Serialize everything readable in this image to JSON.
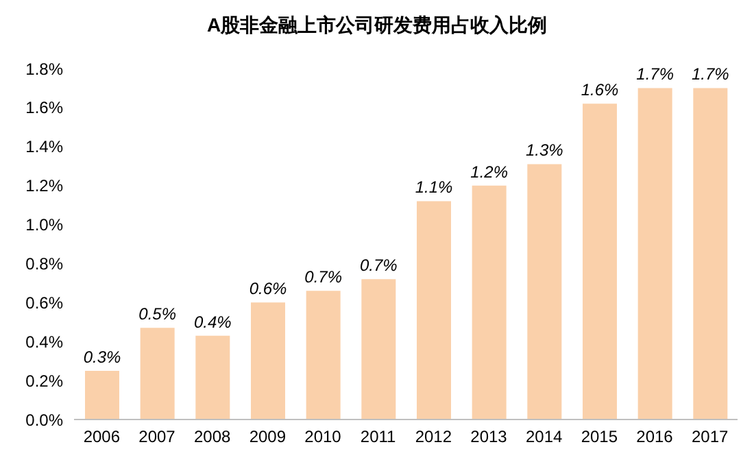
{
  "chart_data": {
    "type": "bar",
    "title": "A股非金融上市公司研发费用占收入比例",
    "categories": [
      "2006",
      "2007",
      "2008",
      "2009",
      "2010",
      "2011",
      "2012",
      "2013",
      "2014",
      "2015",
      "2016",
      "2017"
    ],
    "values": [
      0.25,
      0.47,
      0.43,
      0.6,
      0.66,
      0.72,
      1.12,
      1.2,
      1.31,
      1.62,
      1.7,
      1.7
    ],
    "value_labels": [
      "0.3%",
      "0.5%",
      "0.4%",
      "0.6%",
      "0.7%",
      "0.7%",
      "1.1%",
      "1.2%",
      "1.3%",
      "1.6%",
      "1.7%",
      "1.7%"
    ],
    "color": "#fad0aa",
    "ylim": [
      0,
      1.8
    ],
    "yticks": [
      {
        "value": 0,
        "label": "0.0%"
      },
      {
        "value": 0.2,
        "label": "0.2%"
      },
      {
        "value": 0.4,
        "label": "0.4%"
      },
      {
        "value": 0.6,
        "label": "0.6%"
      },
      {
        "value": 0.8,
        "label": "0.8%"
      },
      {
        "value": 1,
        "label": "1.0%"
      },
      {
        "value": 1.2,
        "label": "1.2%"
      },
      {
        "value": 1.4,
        "label": "1.4%"
      },
      {
        "value": 1.6,
        "label": "1.6%"
      },
      {
        "value": 1.8,
        "label": "1.8%"
      }
    ],
    "grid": false,
    "legend": false
  }
}
